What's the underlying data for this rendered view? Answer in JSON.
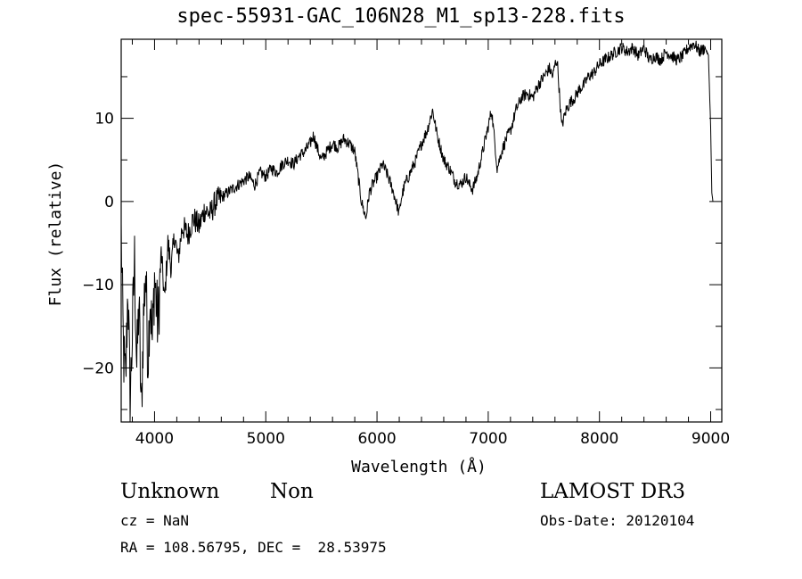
{
  "chart_data": {
    "type": "line",
    "title": "spec-55931-GAC_106N28_M1_sp13-228.fits",
    "xlabel": "Wavelength (Å)",
    "ylabel": "Flux (relative)",
    "xlim": [
      3700,
      9100
    ],
    "ylim": [
      -26.5,
      19.5
    ],
    "xticks": [
      4000,
      5000,
      6000,
      7000,
      8000,
      9000
    ],
    "yticks": [
      -20,
      -10,
      0,
      10
    ],
    "grid": false,
    "series": [
      {
        "name": "spectrum",
        "x": [
          3700,
          3720,
          3740,
          3760,
          3780,
          3800,
          3820,
          3840,
          3860,
          3880,
          3900,
          3920,
          3940,
          3960,
          3980,
          4000,
          4030,
          4060,
          4090,
          4120,
          4150,
          4180,
          4210,
          4250,
          4300,
          4350,
          4400,
          4450,
          4500,
          4550,
          4600,
          4650,
          4700,
          4750,
          4800,
          4850,
          4900,
          4950,
          5000,
          5050,
          5100,
          5150,
          5200,
          5250,
          5300,
          5350,
          5400,
          5430,
          5460,
          5500,
          5550,
          5600,
          5650,
          5700,
          5750,
          5800,
          5830,
          5860,
          5880,
          5900,
          5930,
          5960,
          6000,
          6050,
          6100,
          6150,
          6180,
          6200,
          6220,
          6250,
          6300,
          6350,
          6400,
          6450,
          6480,
          6500,
          6520,
          6540,
          6560,
          6600,
          6650,
          6700,
          6750,
          6800,
          6830,
          6860,
          6900,
          6950,
          7000,
          7030,
          7060,
          7080,
          7120,
          7160,
          7200,
          7250,
          7300,
          7350,
          7400,
          7450,
          7500,
          7550,
          7580,
          7600,
          7620,
          7640,
          7660,
          7680,
          7700,
          7740,
          7780,
          7820,
          7860,
          7900,
          7950,
          8000,
          8050,
          8100,
          8150,
          8200,
          8250,
          8300,
          8350,
          8400,
          8450,
          8500,
          8550,
          8600,
          8650,
          8700,
          8750,
          8800,
          8850,
          8900,
          8950,
          8980,
          9000,
          9010,
          9020
        ],
        "y": [
          -4,
          -18,
          -22,
          -10,
          -24,
          -16,
          -7,
          -20,
          -12,
          -26,
          -14,
          -8,
          -19,
          -11,
          -17,
          -9,
          -15,
          -6,
          -12,
          -5,
          -8,
          -4,
          -7,
          -3,
          -4,
          -2,
          -3,
          -1,
          -1.5,
          0,
          0.5,
          1,
          1.5,
          2,
          2.5,
          3,
          2,
          3.5,
          3,
          4,
          3.5,
          4.5,
          5,
          4.5,
          5.5,
          6,
          7,
          8,
          6.5,
          5,
          6,
          7,
          6.5,
          7.5,
          7,
          6,
          3,
          0,
          -1,
          -2,
          1,
          2,
          3,
          4.5,
          3,
          1,
          -0.5,
          -1.5,
          0.5,
          2,
          3.5,
          5,
          7,
          8.5,
          10,
          11,
          9.5,
          8,
          7,
          5,
          4,
          2.5,
          2,
          3,
          2,
          1.5,
          3,
          6,
          9,
          11,
          7,
          4,
          6,
          7.5,
          8.5,
          11,
          12.5,
          13,
          12.5,
          14,
          15,
          16,
          15,
          16.5,
          17,
          13,
          9,
          10,
          11,
          12,
          12.5,
          13.5,
          14,
          15,
          15.5,
          16.5,
          17,
          17.5,
          18,
          18.5,
          18,
          18.5,
          17.5,
          18.5,
          17,
          17.5,
          17,
          18,
          17.5,
          17,
          17.5,
          18.5,
          19,
          18,
          18.5,
          17.5,
          9,
          1,
          0
        ]
      }
    ]
  },
  "annotations": {
    "object_class": "Unknown",
    "object_subclass": "Non",
    "survey": "LAMOST DR3",
    "redshift": "cz = NaN",
    "obs_date": "Obs-Date: 20120104",
    "coordinates": "RA = 108.56795, DEC =  28.53975"
  }
}
